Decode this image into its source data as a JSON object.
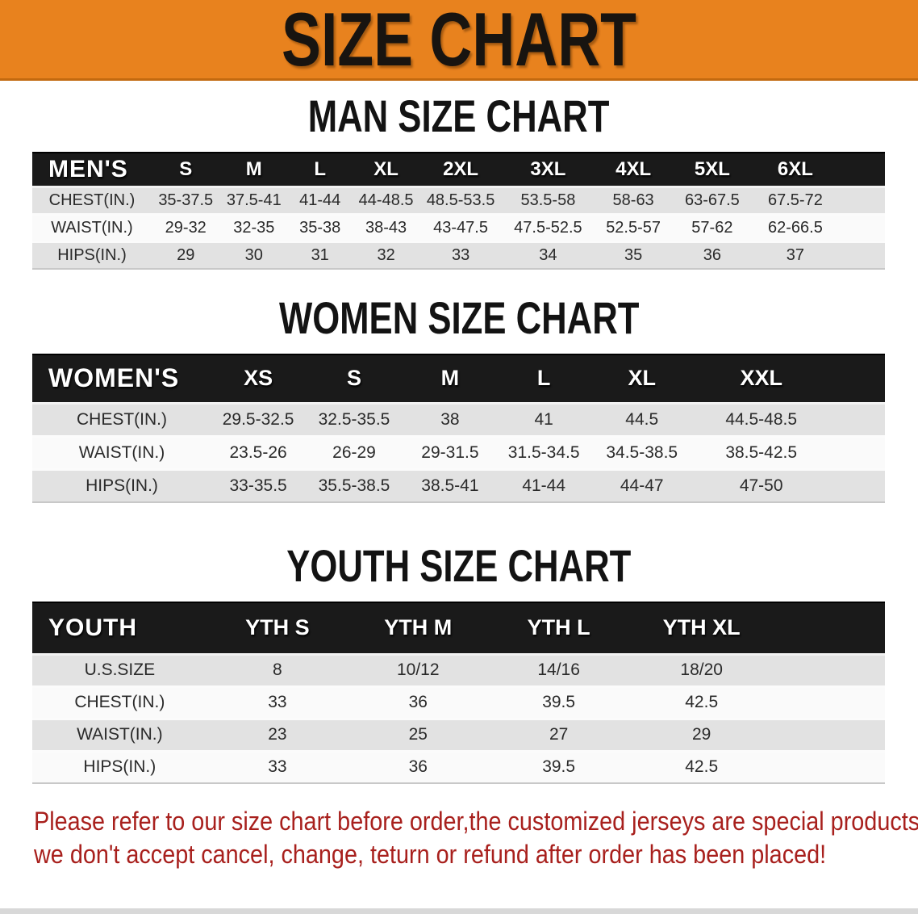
{
  "banner": {
    "title": "SIZE CHART"
  },
  "colors": {
    "banner_orange": "#E8821E",
    "header_black": "#1A1A1A",
    "row_gray": "#E2E2E2",
    "disclaimer_red": "#A8201D"
  },
  "tables": {
    "men": {
      "heading": "MAN SIZE CHART",
      "header": [
        "MEN'S",
        "S",
        "M",
        "L",
        "XL",
        "2XL",
        "3XL",
        "4XL",
        "5XL",
        "6XL"
      ],
      "rows": [
        {
          "label": "CHEST(IN.)",
          "values": [
            "35-37.5",
            "37.5-41",
            "41-44",
            "44-48.5",
            "48.5-53.5",
            "53.5-58",
            "58-63",
            "63-67.5",
            "67.5-72"
          ]
        },
        {
          "label": "WAIST(IN.)",
          "values": [
            "29-32",
            "32-35",
            "35-38",
            "38-43",
            "43-47.5",
            "47.5-52.5",
            "52.5-57",
            "57-62",
            "62-66.5"
          ]
        },
        {
          "label": "HIPS(IN.)",
          "values": [
            "29",
            "30",
            "31",
            "32",
            "33",
            "34",
            "35",
            "36",
            "37"
          ]
        }
      ]
    },
    "women": {
      "heading": "WOMEN SIZE CHART",
      "header": [
        "WOMEN'S",
        "XS",
        "S",
        "M",
        "L",
        "XL",
        "XXL"
      ],
      "rows": [
        {
          "label": "CHEST(IN.)",
          "values": [
            "29.5-32.5",
            "32.5-35.5",
            "38",
            "41",
            "44.5",
            "44.5-48.5"
          ]
        },
        {
          "label": "WAIST(IN.)",
          "values": [
            "23.5-26",
            "26-29",
            "29-31.5",
            "31.5-34.5",
            "34.5-38.5",
            "38.5-42.5"
          ]
        },
        {
          "label": "HIPS(IN.)",
          "values": [
            "33-35.5",
            "35.5-38.5",
            "38.5-41",
            "41-44",
            "44-47",
            "47-50"
          ]
        }
      ]
    },
    "youth": {
      "heading": "YOUTH SIZE CHART",
      "header": [
        "YOUTH",
        "YTH S",
        "YTH M",
        "YTH L",
        "YTH XL"
      ],
      "rows": [
        {
          "label": "U.S.SIZE",
          "values": [
            "8",
            "10/12",
            "14/16",
            "18/20"
          ]
        },
        {
          "label": "CHEST(IN.)",
          "values": [
            "33",
            "36",
            "39.5",
            "42.5"
          ]
        },
        {
          "label": "WAIST(IN.)",
          "values": [
            "23",
            "25",
            "27",
            "29"
          ]
        },
        {
          "label": "HIPS(IN.)",
          "values": [
            "33",
            "36",
            "39.5",
            "42.5"
          ]
        }
      ]
    }
  },
  "disclaimer": {
    "line1": "Please refer to our size chart before order,the customized jerseys are special products,",
    "line2": "we don't accept cancel, change, teturn or refund after order has been placed!"
  }
}
